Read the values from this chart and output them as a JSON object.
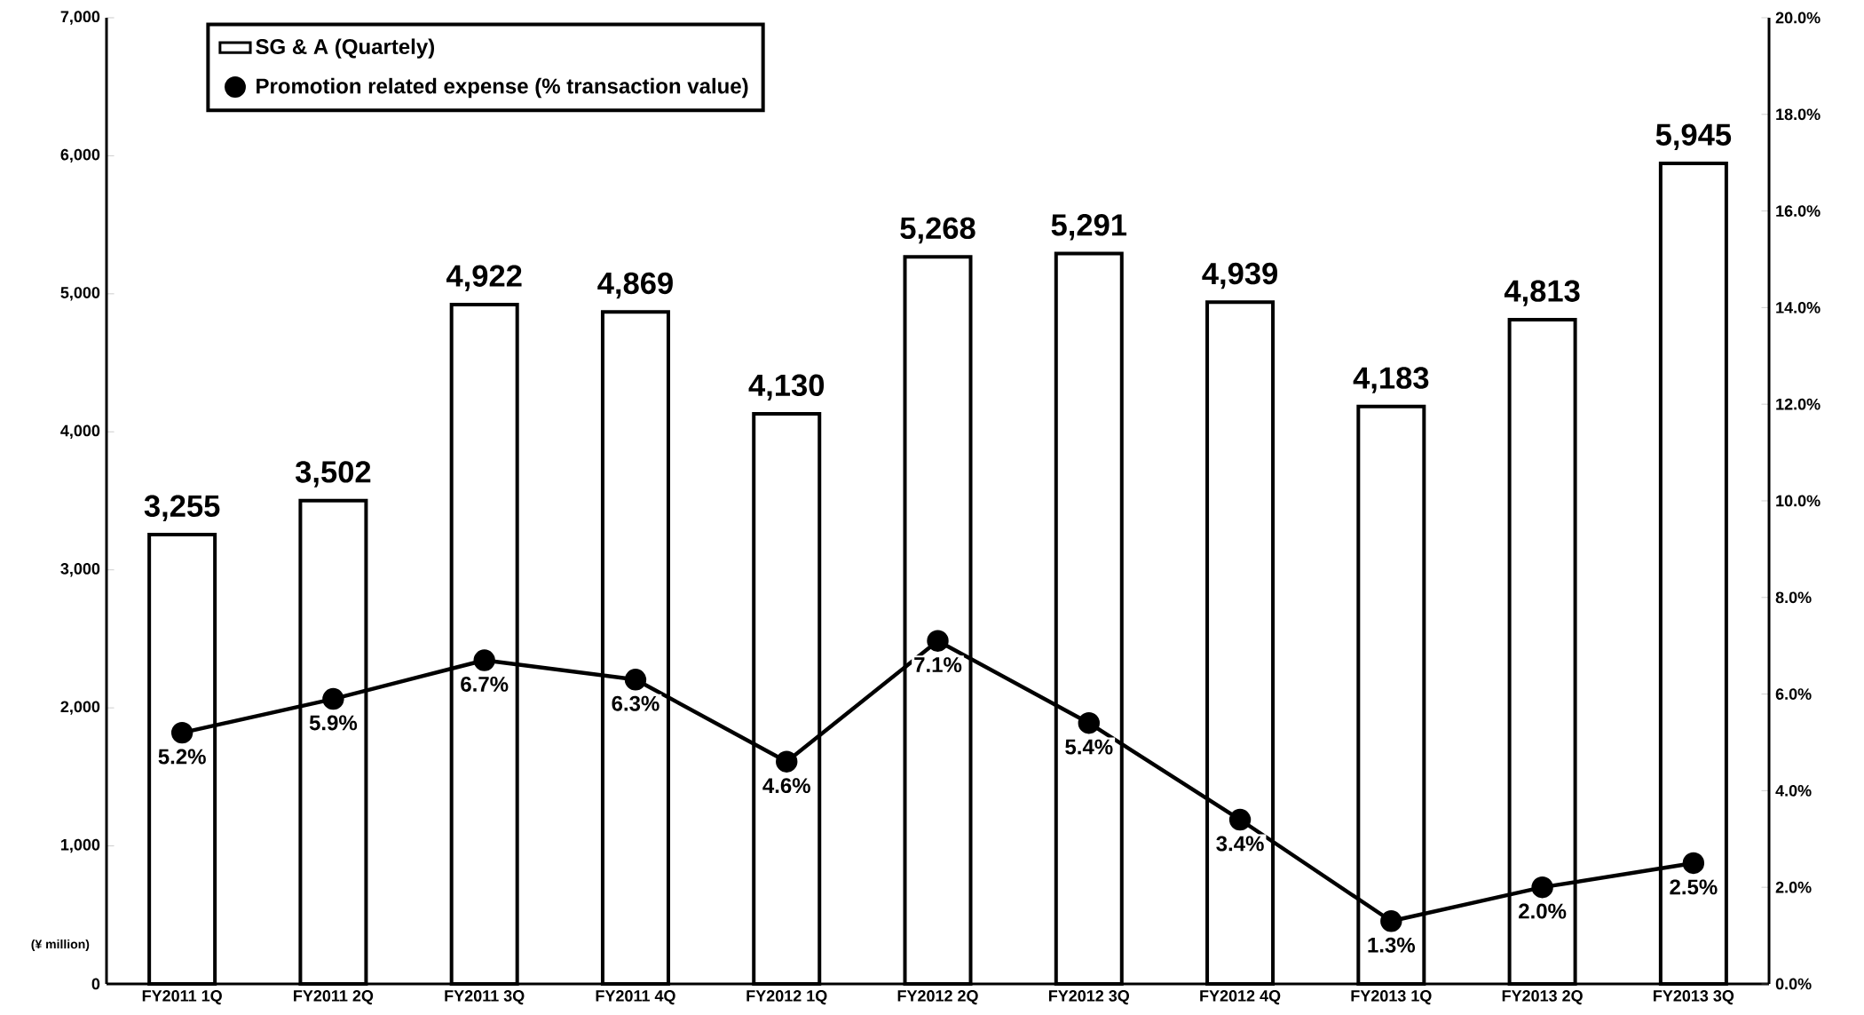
{
  "chart_data": {
    "type": "bar",
    "categories": [
      "FY2011 1Q",
      "FY2011 2Q",
      "FY2011 3Q",
      "FY2011 4Q",
      "FY2012 1Q",
      "FY2012 2Q",
      "FY2012 3Q",
      "FY2012 4Q",
      "FY2013 1Q",
      "FY2013 2Q",
      "FY2013 3Q"
    ],
    "series": [
      {
        "name": "SG & A (Quartely)",
        "color": "#ffffff",
        "values": [
          3255,
          3502,
          4922,
          4869,
          4130,
          5268,
          5291,
          4939,
          4183,
          4813,
          5945
        ],
        "value_labels": [
          "3,255",
          "3,502",
          "4,922",
          "4,869",
          "4,130",
          "5,268",
          "5,291",
          "4,939",
          "4,183",
          "4,813",
          "5,945"
        ]
      },
      {
        "name": "Promotion related expense (% transaction value)",
        "type": "line",
        "axis": "y2",
        "color": "#000000",
        "marker": "circle",
        "values": [
          5.2,
          5.9,
          6.7,
          6.3,
          4.6,
          7.1,
          5.4,
          3.4,
          1.3,
          2.0,
          2.5
        ],
        "value_labels": [
          "5.2%",
          "5.9%",
          "6.7%",
          "6.3%",
          "4.6%",
          "7.1%",
          "5.4%",
          "3.4%",
          "1.3%",
          "2.0%",
          "2.5%"
        ]
      }
    ],
    "ylim": [
      0,
      7000
    ],
    "yticks": [
      0,
      {
        "value": 1000,
        "label": "1,000"
      },
      {
        "value": 2000,
        "label": "2,000"
      },
      {
        "value": 3000,
        "label": "3,000"
      },
      {
        "value": 4000,
        "label": "4,000"
      },
      {
        "value": 5000,
        "label": "5,000"
      },
      {
        "value": 6000,
        "label": "6,000"
      },
      {
        "value": 7000,
        "label": "7,000"
      }
    ],
    "y2lim": [
      0,
      20
    ],
    "y2ticks": [
      {
        "value": 0,
        "label": "0.0%"
      },
      {
        "value": 2,
        "label": "2.0%"
      },
      {
        "value": 4,
        "label": "4.0%"
      },
      {
        "value": 6,
        "label": "6.0%"
      },
      {
        "value": 8,
        "label": "8.0%"
      },
      {
        "value": 10,
        "label": "10.0%"
      },
      {
        "value": 12,
        "label": "12.0%"
      },
      {
        "value": 14,
        "label": "14.0%"
      },
      {
        "value": 16,
        "label": "16.0%"
      },
      {
        "value": 18,
        "label": "18.0%"
      },
      {
        "value": 20,
        "label": "20.0%"
      }
    ],
    "legend": "top left",
    "annotations": [
      "(¥ million)"
    ]
  }
}
